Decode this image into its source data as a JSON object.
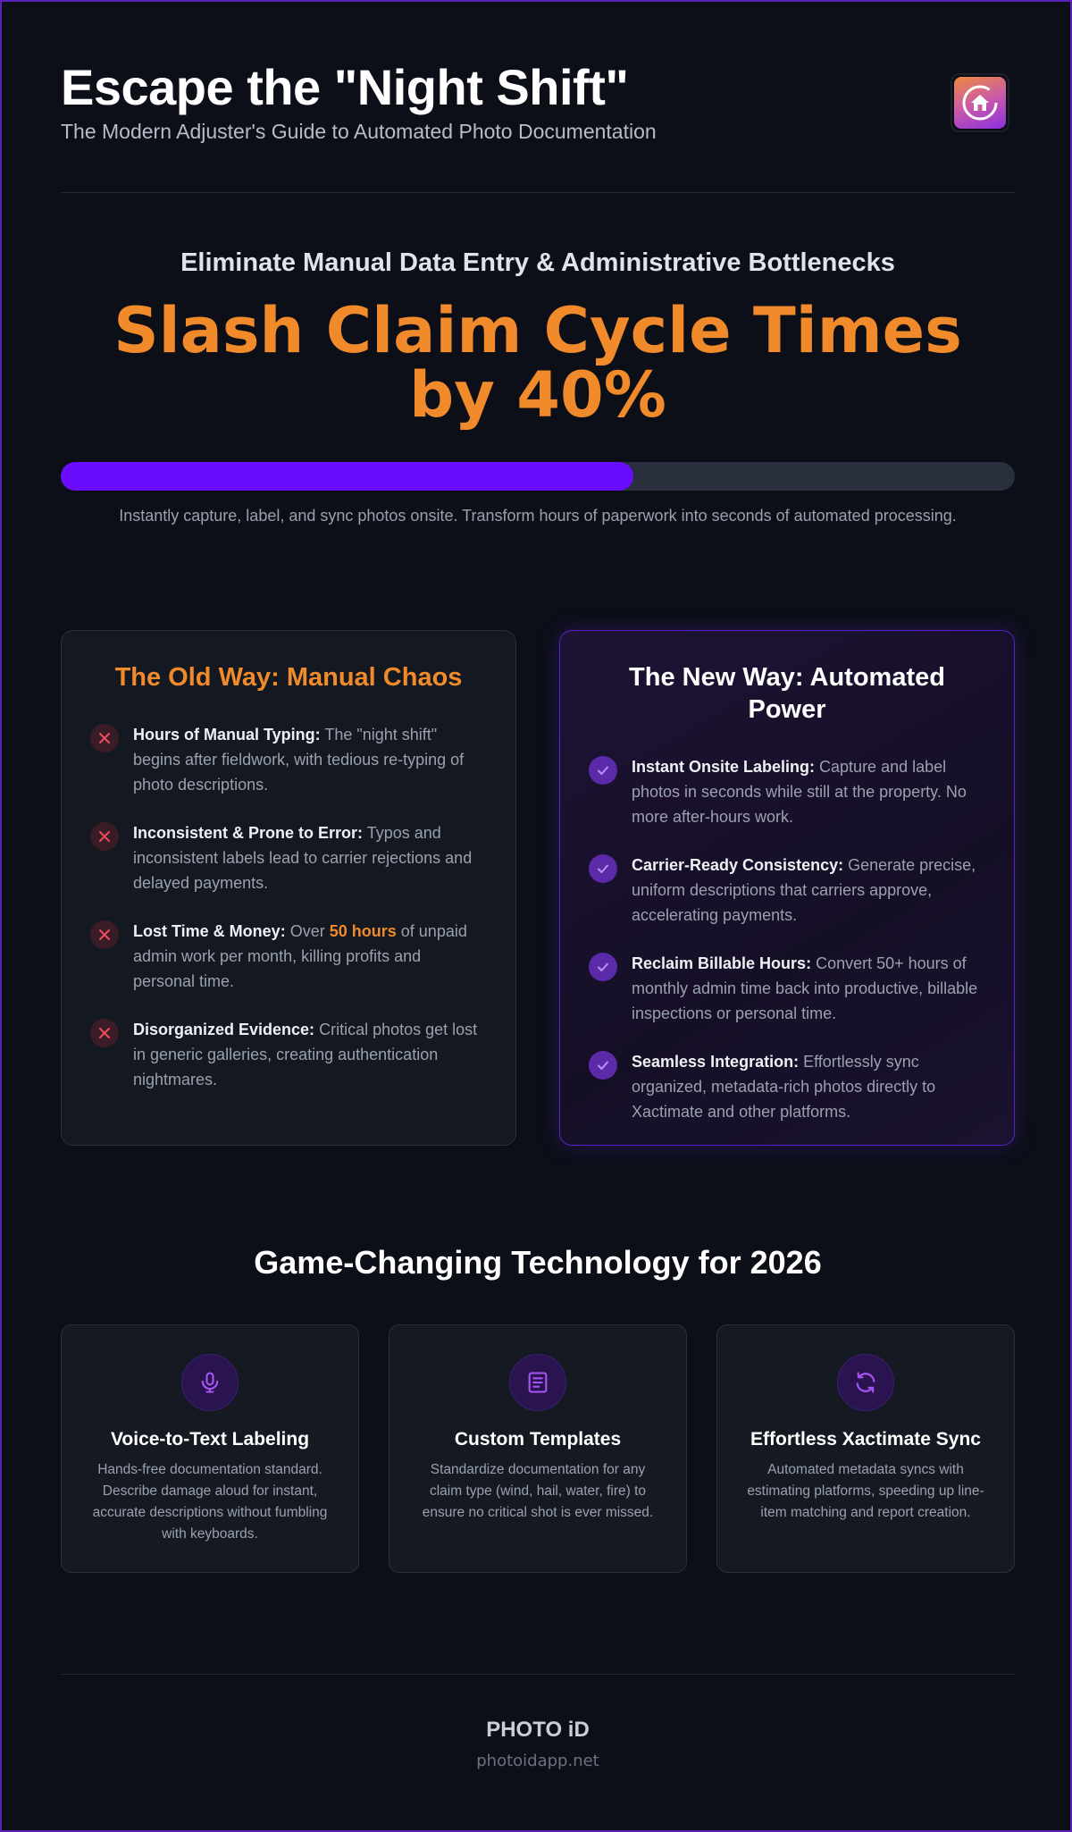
{
  "header": {
    "title": "Escape the \"Night Shift\"",
    "subtitle": "The Modern Adjuster's Guide to Automated Photo Documentation",
    "logo_icon": "house-icon"
  },
  "hero": {
    "subheading": "Eliminate Manual Data Entry & Administrative Bottlenecks",
    "headline": "Slash Claim Cycle Times by 40%",
    "progress_percent": 60,
    "description": "Instantly capture, label, and sync photos onsite. Transform hours of paperwork into seconds of automated processing."
  },
  "old_way": {
    "title": "The Old Way: Manual Chaos",
    "items": [
      {
        "label": "Hours of Manual Typing:",
        "text": "The \"night shift\" begins after fieldwork, with tedious re-typing of photo descriptions."
      },
      {
        "label": "Inconsistent & Prone to Error:",
        "text": "Typos and inconsistent labels lead to carrier rejections and delayed payments."
      },
      {
        "label": "Lost Time & Money:",
        "text_before": "Over",
        "highlight": "50 hours",
        "text_after": "of unpaid admin work per month, killing profits and personal time."
      },
      {
        "label": "Disorganized Evidence:",
        "text": "Critical photos get lost in generic galleries, creating authentication nightmares."
      }
    ]
  },
  "new_way": {
    "title": "The New Way: Automated Power",
    "items": [
      {
        "label": "Instant Onsite Labeling:",
        "text": "Capture and label photos in seconds while still at the property. No more after-hours work."
      },
      {
        "label": "Carrier-Ready Consistency:",
        "text": "Generate precise, uniform descriptions that carriers approve, accelerating payments."
      },
      {
        "label": "Reclaim Billable Hours:",
        "text": "Convert 50+ hours of monthly admin time back into productive, billable inspections or personal time."
      },
      {
        "label": "Seamless Integration:",
        "text": "Effortlessly sync organized, metadata-rich photos directly to Xactimate and other platforms."
      }
    ]
  },
  "technology": {
    "title": "Game-Changing Technology for 2026",
    "features": [
      {
        "icon": "microphone-icon",
        "title": "Voice-to-Text Labeling",
        "description": "Hands-free documentation standard. Describe damage aloud for instant, accurate descriptions without fumbling with keyboards."
      },
      {
        "icon": "document-icon",
        "title": "Custom Templates",
        "description": "Standardize documentation for any claim type (wind, hail, water, fire) to ensure no critical shot is ever missed."
      },
      {
        "icon": "sync-icon",
        "title": "Effortless Xactimate Sync",
        "description": "Automated metadata syncs with estimating platforms, speeding up line-item matching and report creation."
      }
    ]
  },
  "footer": {
    "brand": "PHOTO iD",
    "url": "photoidapp.net"
  },
  "colors": {
    "accent_orange": "#f08a2a",
    "accent_purple": "#6a0dff",
    "background": "#0c0f18"
  }
}
